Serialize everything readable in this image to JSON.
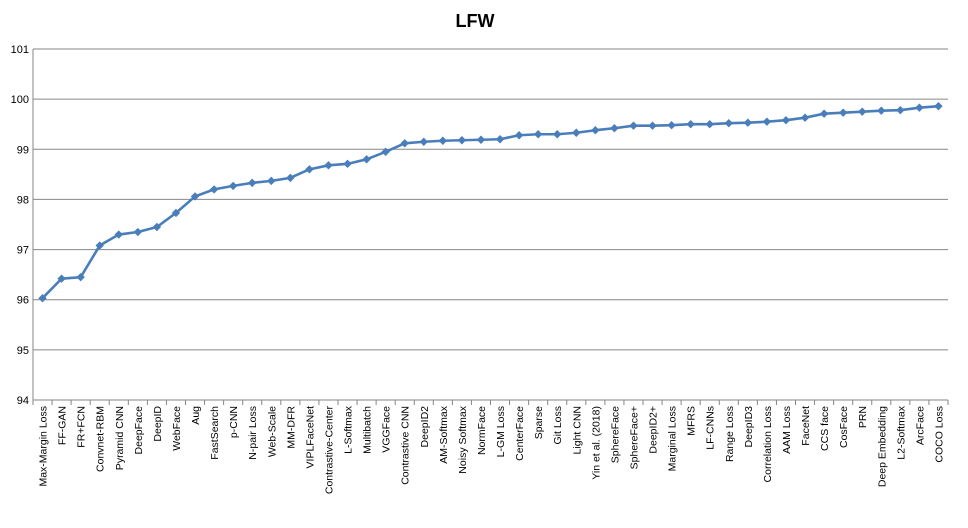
{
  "chart_data": {
    "type": "line",
    "title": "LFW",
    "xlabel": "",
    "ylabel": "",
    "ylim": [
      94,
      101
    ],
    "yticks": [
      94,
      95,
      96,
      97,
      98,
      99,
      100,
      101
    ],
    "grid": true,
    "legend": "none",
    "color": "#4a7ebb",
    "categories": [
      "Max-Margin Loss",
      "FF-GAN",
      "FR+FCN",
      "Convnet-RBM",
      "Pyramid CNN",
      "DeepFace",
      "DeepID",
      "WebFace",
      "Aug",
      "FastSearch",
      "p-CNN",
      "N-pair Loss",
      "Web-Scale",
      "MM-DFR",
      "VIPLFaceNet",
      "Contrastive-Center",
      "L-Softmax",
      "Multibatch",
      "VGGFace",
      "Contrastive CNN",
      "DeepID2",
      "AM-Softmax",
      "Noisy Softmax",
      "NormFace",
      "L-GM Loss",
      "CenterFace",
      "Sparse",
      "Git Loss",
      "Light CNN",
      "Yin et al. (2018)",
      "SphereFace",
      "SphereFace+",
      "DeepID2+",
      "Marginal Loss",
      "MFRS",
      "LF-CNNs",
      "Range Loss",
      "DeepID3",
      "Correlation Loss",
      "AAM Loss",
      "FaceNet",
      "CCS face",
      "CosFace",
      "PRN",
      "Deep Embedding",
      "L2-Softmax",
      "ArcFace",
      "COCO Loss"
    ],
    "series": [
      {
        "values": [
          96.03,
          96.42,
          96.45,
          97.08,
          97.3,
          97.35,
          97.45,
          97.73,
          98.06,
          98.2,
          98.27,
          98.33,
          98.37,
          98.43,
          98.6,
          98.68,
          98.71,
          98.8,
          98.95,
          99.12,
          99.15,
          99.17,
          99.18,
          99.19,
          99.2,
          99.28,
          99.3,
          99.3,
          99.33,
          99.38,
          99.42,
          99.47,
          99.47,
          99.48,
          99.5,
          99.5,
          99.52,
          99.53,
          99.55,
          99.58,
          99.63,
          99.71,
          99.73,
          99.75,
          99.77,
          99.78,
          99.83,
          99.86
        ]
      }
    ]
  }
}
